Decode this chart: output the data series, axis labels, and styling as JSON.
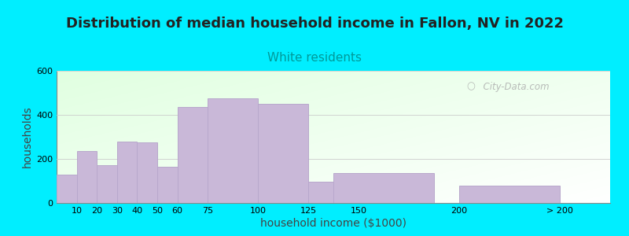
{
  "title": "Distribution of median household income in Fallon, NV in 2022",
  "subtitle": "White residents",
  "xlabel": "household income ($1000)",
  "ylabel": "households",
  "bar_color": "#c9b8d8",
  "bar_edge_color": "#b8a8cc",
  "background_color": "#00eeff",
  "ylim": [
    0,
    600
  ],
  "yticks": [
    0,
    200,
    400,
    600
  ],
  "values": [
    130,
    235,
    170,
    280,
    275,
    165,
    435,
    475,
    450,
    95,
    135,
    80
  ],
  "bar_lefts": [
    5,
    15,
    25,
    35,
    45,
    55,
    67.5,
    87.5,
    112.5,
    137.5,
    162.5,
    225
  ],
  "bar_widths": [
    10,
    10,
    10,
    10,
    10,
    10,
    15,
    25,
    25,
    25,
    50,
    50
  ],
  "xtick_positions": [
    10,
    20,
    30,
    40,
    50,
    60,
    75,
    100,
    125,
    150,
    200
  ],
  "xtick_labels": [
    "10",
    "20",
    "30",
    "40",
    "50",
    "60",
    "75",
    "100",
    "125",
    "150",
    "200"
  ],
  "xtick_extra_pos": 250,
  "xtick_extra_label": "> 200",
  "xlim": [
    0,
    275
  ],
  "title_fontsize": 13,
  "subtitle_fontsize": 11,
  "subtitle_color": "#009999",
  "title_color": "#222222",
  "label_fontsize": 10,
  "tick_fontsize": 8,
  "watermark": "City-Data.com"
}
